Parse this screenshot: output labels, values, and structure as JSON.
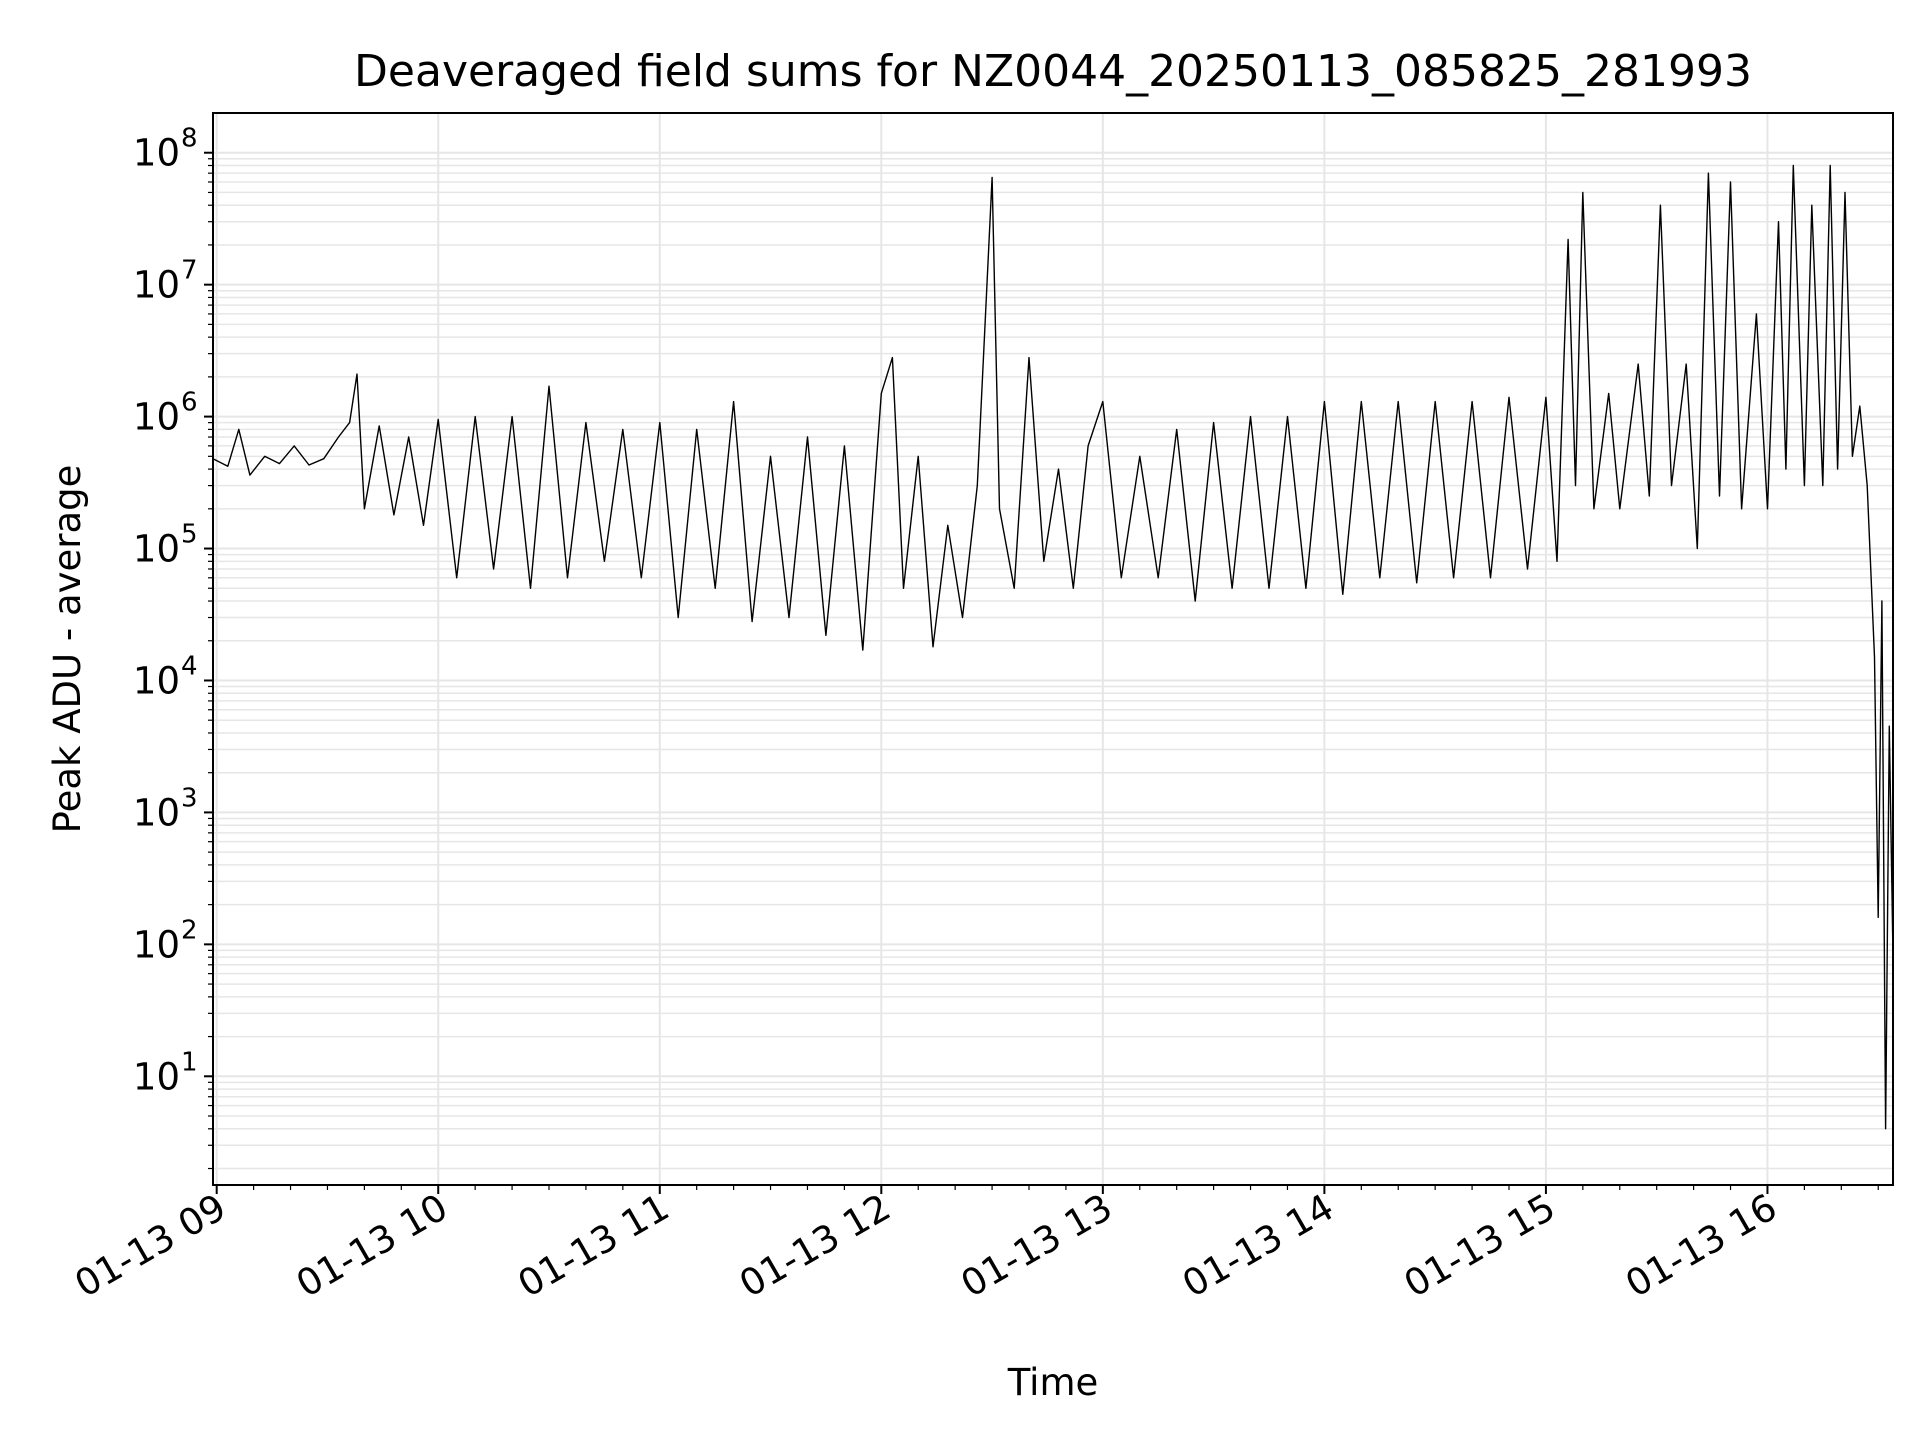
{
  "chart_data": {
    "type": "line",
    "title": "Deaveraged field sums for NZ0044_20250113_085825_281993",
    "xlabel": "Time",
    "ylabel": "Peak ADU - average",
    "yscale": "log",
    "ylim": [
      1.5,
      200000000
    ],
    "xlim": [
      "01-13 08:59",
      "01-13 16:34"
    ],
    "grid": true,
    "line_color": "#000000",
    "grid_color": "#e6e6e6",
    "x_ticks": [
      "01-13 09",
      "01-13 10",
      "01-13 11",
      "01-13 12",
      "01-13 13",
      "01-13 14",
      "01-13 15",
      "01-13 16"
    ],
    "y_ticks": [
      {
        "base": "10",
        "exp": "1",
        "value": 10
      },
      {
        "base": "10",
        "exp": "2",
        "value": 100
      },
      {
        "base": "10",
        "exp": "3",
        "value": 1000
      },
      {
        "base": "10",
        "exp": "4",
        "value": 10000
      },
      {
        "base": "10",
        "exp": "5",
        "value": 100000
      },
      {
        "base": "10",
        "exp": "6",
        "value": 1000000
      },
      {
        "base": "10",
        "exp": "7",
        "value": 10000000
      },
      {
        "base": "10",
        "exp": "8",
        "value": 100000000
      }
    ],
    "series": [
      {
        "points": [
          [
            "01-13 08:59",
            480000
          ],
          [
            "01-13 09:03",
            420000
          ],
          [
            "01-13 09:06",
            800000
          ],
          [
            "01-13 09:09",
            360000
          ],
          [
            "01-13 09:13",
            500000
          ],
          [
            "01-13 09:17",
            440000
          ],
          [
            "01-13 09:21",
            600000
          ],
          [
            "01-13 09:25",
            430000
          ],
          [
            "01-13 09:29",
            480000
          ],
          [
            "01-13 09:33",
            700000
          ],
          [
            "01-13 09:36",
            900000
          ],
          [
            "01-13 09:38",
            2100000
          ],
          [
            "01-13 09:40",
            200000
          ],
          [
            "01-13 09:44",
            850000
          ],
          [
            "01-13 09:48",
            180000
          ],
          [
            "01-13 09:52",
            700000
          ],
          [
            "01-13 09:56",
            150000
          ],
          [
            "01-13 10:00",
            950000
          ],
          [
            "01-13 10:05",
            60000
          ],
          [
            "01-13 10:10",
            1000000
          ],
          [
            "01-13 10:15",
            70000
          ],
          [
            "01-13 10:20",
            1000000
          ],
          [
            "01-13 10:25",
            50000
          ],
          [
            "01-13 10:30",
            1700000
          ],
          [
            "01-13 10:35",
            60000
          ],
          [
            "01-13 10:40",
            900000
          ],
          [
            "01-13 10:45",
            80000
          ],
          [
            "01-13 10:50",
            800000
          ],
          [
            "01-13 10:55",
            60000
          ],
          [
            "01-13 11:00",
            900000
          ],
          [
            "01-13 11:05",
            30000
          ],
          [
            "01-13 11:10",
            800000
          ],
          [
            "01-13 11:15",
            50000
          ],
          [
            "01-13 11:20",
            1300000
          ],
          [
            "01-13 11:25",
            28000
          ],
          [
            "01-13 11:30",
            500000
          ],
          [
            "01-13 11:35",
            30000
          ],
          [
            "01-13 11:40",
            700000
          ],
          [
            "01-13 11:45",
            22000
          ],
          [
            "01-13 11:50",
            600000
          ],
          [
            "01-13 11:55",
            17000
          ],
          [
            "01-13 12:00",
            1500000
          ],
          [
            "01-13 12:03",
            2800000
          ],
          [
            "01-13 12:06",
            50000
          ],
          [
            "01-13 12:10",
            500000
          ],
          [
            "01-13 12:14",
            18000
          ],
          [
            "01-13 12:18",
            150000
          ],
          [
            "01-13 12:22",
            30000
          ],
          [
            "01-13 12:26",
            300000
          ],
          [
            "01-13 12:30",
            65000000
          ],
          [
            "01-13 12:32",
            200000
          ],
          [
            "01-13 12:36",
            50000
          ],
          [
            "01-13 12:40",
            2800000
          ],
          [
            "01-13 12:44",
            80000
          ],
          [
            "01-13 12:48",
            400000
          ],
          [
            "01-13 12:52",
            50000
          ],
          [
            "01-13 12:56",
            600000
          ],
          [
            "01-13 13:00",
            1300000
          ],
          [
            "01-13 13:05",
            60000
          ],
          [
            "01-13 13:10",
            500000
          ],
          [
            "01-13 13:15",
            60000
          ],
          [
            "01-13 13:20",
            800000
          ],
          [
            "01-13 13:25",
            40000
          ],
          [
            "01-13 13:30",
            900000
          ],
          [
            "01-13 13:35",
            50000
          ],
          [
            "01-13 13:40",
            1000000
          ],
          [
            "01-13 13:45",
            50000
          ],
          [
            "01-13 13:50",
            1000000
          ],
          [
            "01-13 13:55",
            50000
          ],
          [
            "01-13 14:00",
            1300000
          ],
          [
            "01-13 14:05",
            45000
          ],
          [
            "01-13 14:10",
            1300000
          ],
          [
            "01-13 14:15",
            60000
          ],
          [
            "01-13 14:20",
            1300000
          ],
          [
            "01-13 14:25",
            55000
          ],
          [
            "01-13 14:30",
            1300000
          ],
          [
            "01-13 14:35",
            60000
          ],
          [
            "01-13 14:40",
            1300000
          ],
          [
            "01-13 14:45",
            60000
          ],
          [
            "01-13 14:50",
            1400000
          ],
          [
            "01-13 14:55",
            70000
          ],
          [
            "01-13 15:00",
            1400000
          ],
          [
            "01-13 15:03",
            80000
          ],
          [
            "01-13 15:06",
            22000000
          ],
          [
            "01-13 15:08",
            300000
          ],
          [
            "01-13 15:10",
            50000000
          ],
          [
            "01-13 15:13",
            200000
          ],
          [
            "01-13 15:17",
            1500000
          ],
          [
            "01-13 15:20",
            200000
          ],
          [
            "01-13 15:25",
            2500000
          ],
          [
            "01-13 15:28",
            250000
          ],
          [
            "01-13 15:31",
            40000000
          ],
          [
            "01-13 15:34",
            300000
          ],
          [
            "01-13 15:38",
            2500000
          ],
          [
            "01-13 15:41",
            100000
          ],
          [
            "01-13 15:44",
            70000000
          ],
          [
            "01-13 15:47",
            250000
          ],
          [
            "01-13 15:50",
            60000000
          ],
          [
            "01-13 15:53",
            200000
          ],
          [
            "01-13 15:57",
            6000000
          ],
          [
            "01-13 16:00",
            200000
          ],
          [
            "01-13 16:03",
            30000000
          ],
          [
            "01-13 16:05",
            400000
          ],
          [
            "01-13 16:07",
            80000000
          ],
          [
            "01-13 16:10",
            300000
          ],
          [
            "01-13 16:12",
            40000000
          ],
          [
            "01-13 16:15",
            300000
          ],
          [
            "01-13 16:17",
            80000000
          ],
          [
            "01-13 16:19",
            400000
          ],
          [
            "01-13 16:21",
            50000000
          ],
          [
            "01-13 16:23",
            500000
          ],
          [
            "01-13 16:25",
            1200000
          ],
          [
            "01-13 16:27",
            300000
          ],
          [
            "01-13 16:29",
            15000
          ],
          [
            "01-13 16:30",
            160
          ],
          [
            "01-13 16:31",
            40000
          ],
          [
            "01-13 16:32",
            4
          ],
          [
            "01-13 16:33",
            4500
          ],
          [
            "01-13 16:34",
            80
          ]
        ]
      }
    ]
  }
}
